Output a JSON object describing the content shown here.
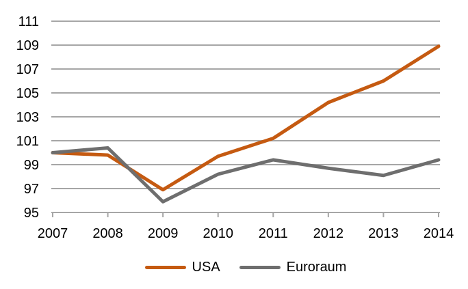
{
  "chart_data": {
    "type": "line",
    "categories": [
      "2007",
      "2008",
      "2009",
      "2010",
      "2011",
      "2012",
      "2013",
      "2014"
    ],
    "series": [
      {
        "name": "USA",
        "color": "#C55A11",
        "values": [
          100,
          99.8,
          96.9,
          99.7,
          101.2,
          104.2,
          106.0,
          108.9
        ]
      },
      {
        "name": "Euroraum",
        "color": "#6E6E6E",
        "values": [
          100,
          100.4,
          95.9,
          98.2,
          99.4,
          98.7,
          98.1,
          99.4
        ]
      }
    ],
    "ylim": [
      95,
      111
    ],
    "y_ticks": [
      111,
      109,
      107,
      105,
      103,
      101,
      99,
      97,
      95
    ],
    "grid": "horizontal",
    "legend_position": "bottom",
    "gridline_color": "#A6A6A6",
    "label_color": "#000000",
    "background": "#FFFFFF",
    "line_width": 5
  }
}
